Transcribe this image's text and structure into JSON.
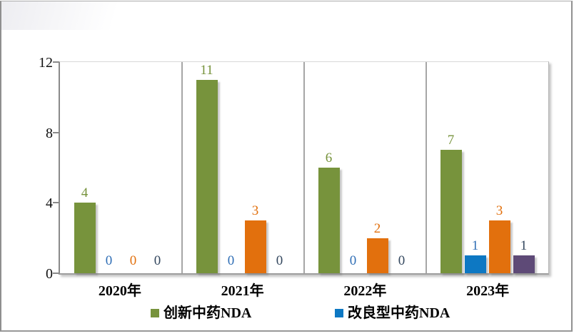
{
  "chart_data": {
    "type": "bar",
    "title": "",
    "xlabel": "",
    "ylabel": "",
    "categories": [
      "2020年",
      "2021年",
      "2022年",
      "2023年"
    ],
    "series": [
      {
        "id": "green",
        "name": "创新中药NDA",
        "color": "#77933C",
        "label_color": "#77933C",
        "values": [
          4,
          11,
          6,
          7
        ],
        "legend_visible": true
      },
      {
        "id": "blue",
        "name": "改良型中药NDA",
        "color": "#0D78C3",
        "label_color": "#2F6EB5",
        "values": [
          0,
          0,
          0,
          1
        ],
        "legend_visible": true
      },
      {
        "id": "orange",
        "name": "",
        "color": "#E2700D",
        "label_color": "#E2700D",
        "values": [
          0,
          3,
          2,
          3
        ],
        "legend_visible": false
      },
      {
        "id": "purple",
        "name": "",
        "color": "#5E4A77",
        "label_color": "#33475E",
        "values": [
          0,
          0,
          0,
          1
        ],
        "legend_visible": false
      }
    ],
    "ylim": [
      0,
      12
    ],
    "yticks": [
      0,
      4,
      8,
      12
    ],
    "ytick_labels_top_to_bottom": [
      "12",
      "8",
      "4",
      "0"
    ],
    "grid": "vertical category separators only, top boundary line at y=12",
    "legend_position": "bottom"
  },
  "legend": {
    "items": [
      {
        "label": "创新中药NDA",
        "color": "#77933C"
      },
      {
        "label": "改良型中药NDA",
        "color": "#0D78C3"
      }
    ]
  },
  "frame": {
    "border_color": "#8f8f8f",
    "background": "#ffffff"
  }
}
